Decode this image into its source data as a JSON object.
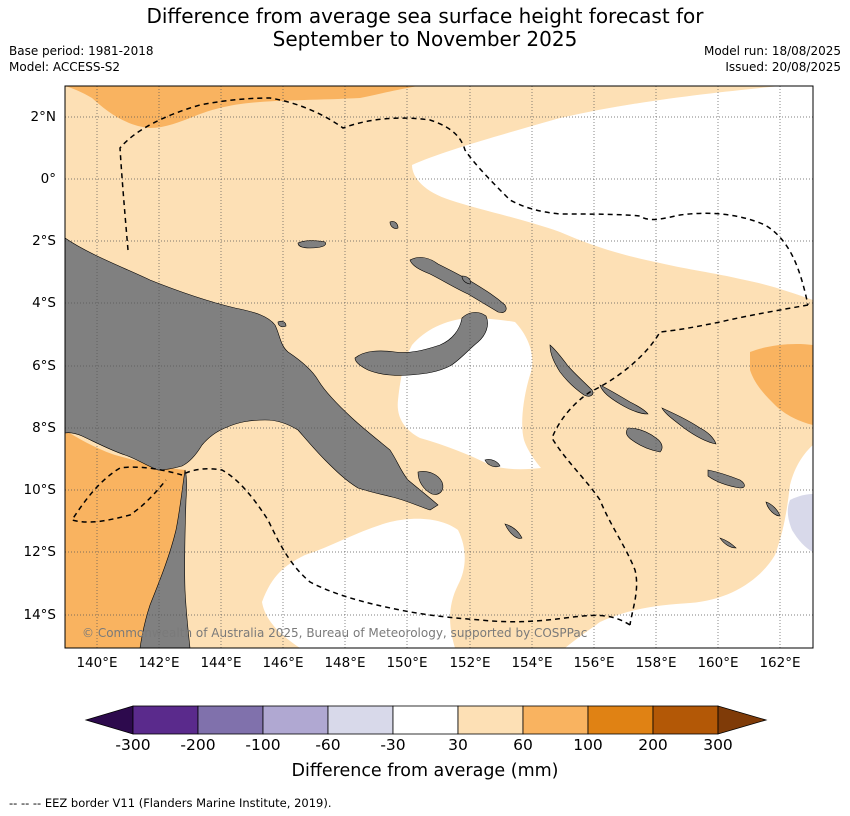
{
  "title_line1": "Difference from average sea surface height forecast for",
  "title_line2": "September to November 2025",
  "meta_left": [
    "Base period: 1981-2018",
    "Model: ACCESS-S2"
  ],
  "meta_right": [
    "Model run: 18/08/2025",
    "Issued: 20/08/2025"
  ],
  "lat_labels": [
    "2°N",
    "0°",
    "2°S",
    "4°S",
    "6°S",
    "8°S",
    "10°S",
    "12°S",
    "14°S"
  ],
  "lon_labels": [
    "140°E",
    "142°E",
    "144°E",
    "146°E",
    "148°E",
    "150°E",
    "152°E",
    "154°E",
    "156°E",
    "158°E",
    "160°E",
    "162°E"
  ],
  "copyright": "© Commonwealth of Australia 2025, Bureau of Meteorology, supported by COSPPac",
  "colorbar": {
    "ticks": [
      "-300",
      "-200",
      "-100",
      "-60",
      "-30",
      "30",
      "60",
      "100",
      "200",
      "300"
    ],
    "label": "Difference from average (mm)",
    "colors": [
      "#2d0a4d",
      "#5a2a8c",
      "#8071ac",
      "#b0a8d2",
      "#d8d9ea",
      "#ffffff",
      "#fde0b5",
      "#f9b360",
      "#e08214",
      "#b35806",
      "#7f3b08"
    ]
  },
  "footnote": "--  --  -- EEZ border V11 (Flanders Marine Institute, 2019).",
  "map_colors": {
    "land": "#808080",
    "light_orange": "#fde0b5",
    "mid_orange": "#f9b360",
    "neutral": "#ffffff",
    "light_purple": "#d8d9ea"
  }
}
